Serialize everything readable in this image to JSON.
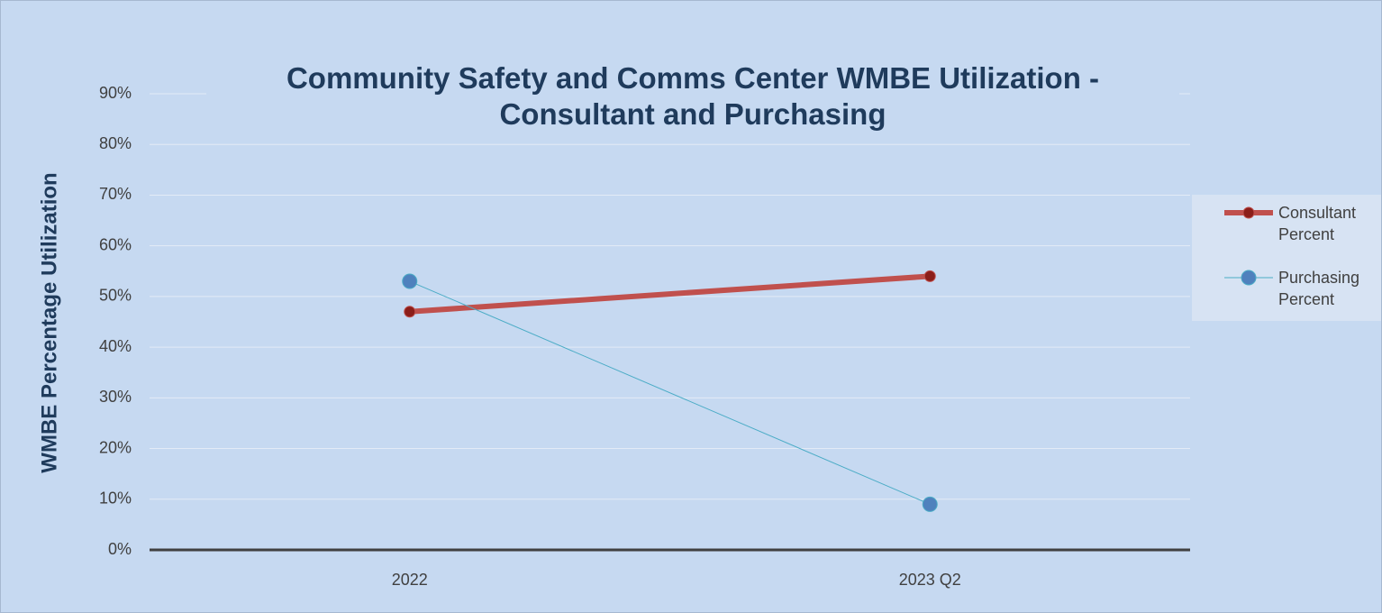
{
  "chart_data": {
    "type": "line",
    "title": "Community Safety and Comms Center WMBE Utilization - Consultant and Purchasing",
    "y_label": "WMBE Percentage Utilization",
    "categories": [
      "2022",
      "2023 Q2"
    ],
    "series": [
      {
        "name": "Consultant Percent",
        "color": "#c0504d",
        "marker_color": "#8b1e1a",
        "line_width": 6,
        "marker_radius": 6,
        "values": [
          47,
          54
        ]
      },
      {
        "name": "Purchasing Percent",
        "color": "#4bacc6",
        "marker_color": "#4f81bd",
        "line_width": 1,
        "marker_radius": 8,
        "values": [
          53,
          9
        ]
      }
    ],
    "ylim": [
      0,
      90
    ],
    "yticks": [
      {
        "value": 0,
        "label": "0%"
      },
      {
        "value": 10,
        "label": "10%"
      },
      {
        "value": 20,
        "label": "20%"
      },
      {
        "value": 30,
        "label": "30%"
      },
      {
        "value": 40,
        "label": "40%"
      },
      {
        "value": 50,
        "label": "50%"
      },
      {
        "value": 60,
        "label": "60%"
      },
      {
        "value": 70,
        "label": "70%"
      },
      {
        "value": 80,
        "label": "80%"
      },
      {
        "value": 90,
        "label": "90%"
      }
    ],
    "grid": true,
    "legend": "right"
  }
}
